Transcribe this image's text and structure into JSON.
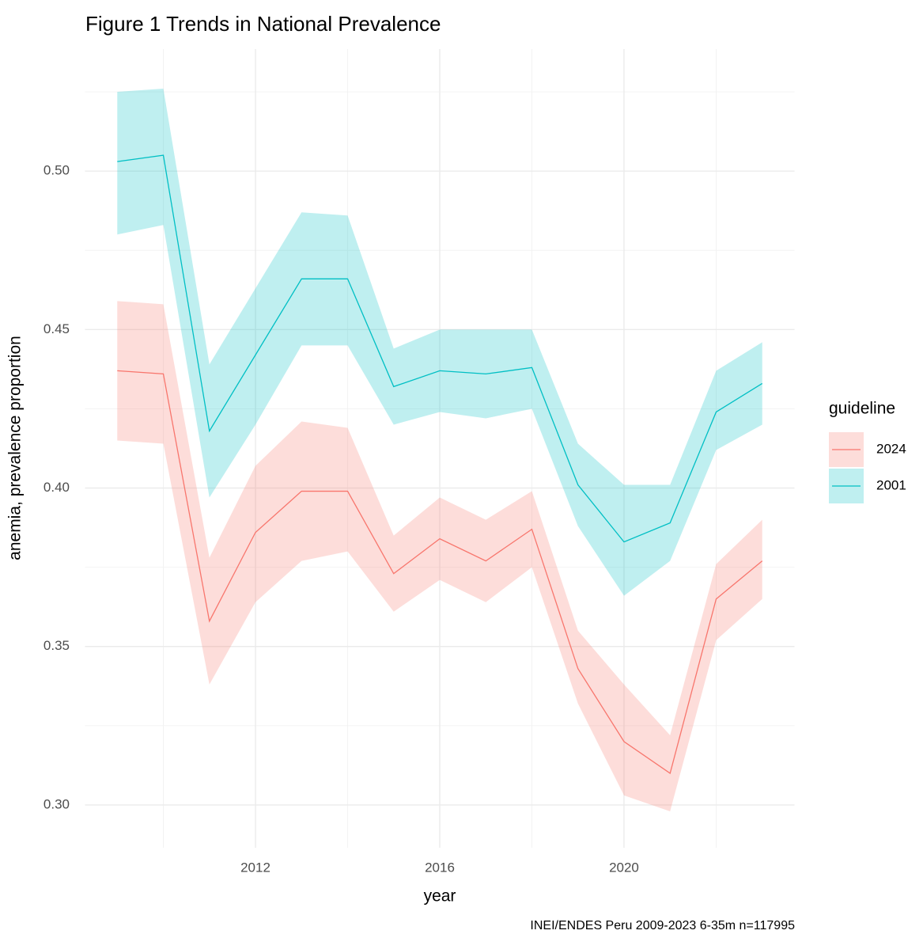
{
  "chart_data": {
    "type": "line",
    "title": "Figure 1 Trends in National Prevalence",
    "x_label": "year",
    "y_label": "anemia, prevalence proportion",
    "legend_title": "guideline",
    "caption": "INEI/ENDES Peru 2009-2023 6-35m n=117995",
    "x": [
      2009,
      2010,
      2011,
      2012,
      2013,
      2014,
      2015,
      2016,
      2017,
      2018,
      2019,
      2020,
      2021,
      2022,
      2023
    ],
    "series": [
      {
        "name": "2024",
        "color": "#F8766D",
        "values": [
          0.437,
          0.436,
          0.358,
          0.386,
          0.399,
          0.399,
          0.373,
          0.384,
          0.377,
          0.387,
          0.343,
          0.32,
          0.31,
          0.365,
          0.377
        ],
        "lower": [
          0.415,
          0.414,
          0.338,
          0.364,
          0.377,
          0.38,
          0.361,
          0.371,
          0.364,
          0.375,
          0.332,
          0.303,
          0.298,
          0.352,
          0.365
        ],
        "upper": [
          0.459,
          0.458,
          0.378,
          0.407,
          0.421,
          0.419,
          0.385,
          0.397,
          0.39,
          0.399,
          0.355,
          0.338,
          0.322,
          0.376,
          0.39
        ]
      },
      {
        "name": "2001",
        "color": "#00BFC4",
        "values": [
          0.503,
          0.505,
          0.418,
          0.442,
          0.466,
          0.466,
          0.432,
          0.437,
          0.436,
          0.438,
          0.401,
          0.383,
          0.389,
          0.424,
          0.433
        ],
        "lower": [
          0.48,
          0.483,
          0.397,
          0.42,
          0.445,
          0.445,
          0.42,
          0.424,
          0.422,
          0.425,
          0.388,
          0.366,
          0.377,
          0.412,
          0.42
        ],
        "upper": [
          0.525,
          0.526,
          0.439,
          0.463,
          0.487,
          0.486,
          0.444,
          0.45,
          0.45,
          0.45,
          0.414,
          0.401,
          0.401,
          0.437,
          0.446
        ]
      }
    ],
    "band_opacity": 0.25,
    "xlim": [
      2008.3,
      2023.7
    ],
    "xticks": [
      2012,
      2016,
      2020
    ],
    "x_minor_ticks": [
      2010,
      2014,
      2018,
      2022
    ],
    "ylim": [
      0.2865,
      0.5385
    ],
    "yticks": [
      {
        "value": 0.3,
        "label": "0.30"
      },
      {
        "value": 0.35,
        "label": "0.35"
      },
      {
        "value": 0.4,
        "label": "0.40"
      },
      {
        "value": 0.45,
        "label": "0.45"
      },
      {
        "value": 0.5,
        "label": "0.50"
      }
    ],
    "y_minor_ticks": [
      0.325,
      0.375,
      0.425,
      0.475,
      0.525
    ],
    "grid": true,
    "legend": "right"
  }
}
